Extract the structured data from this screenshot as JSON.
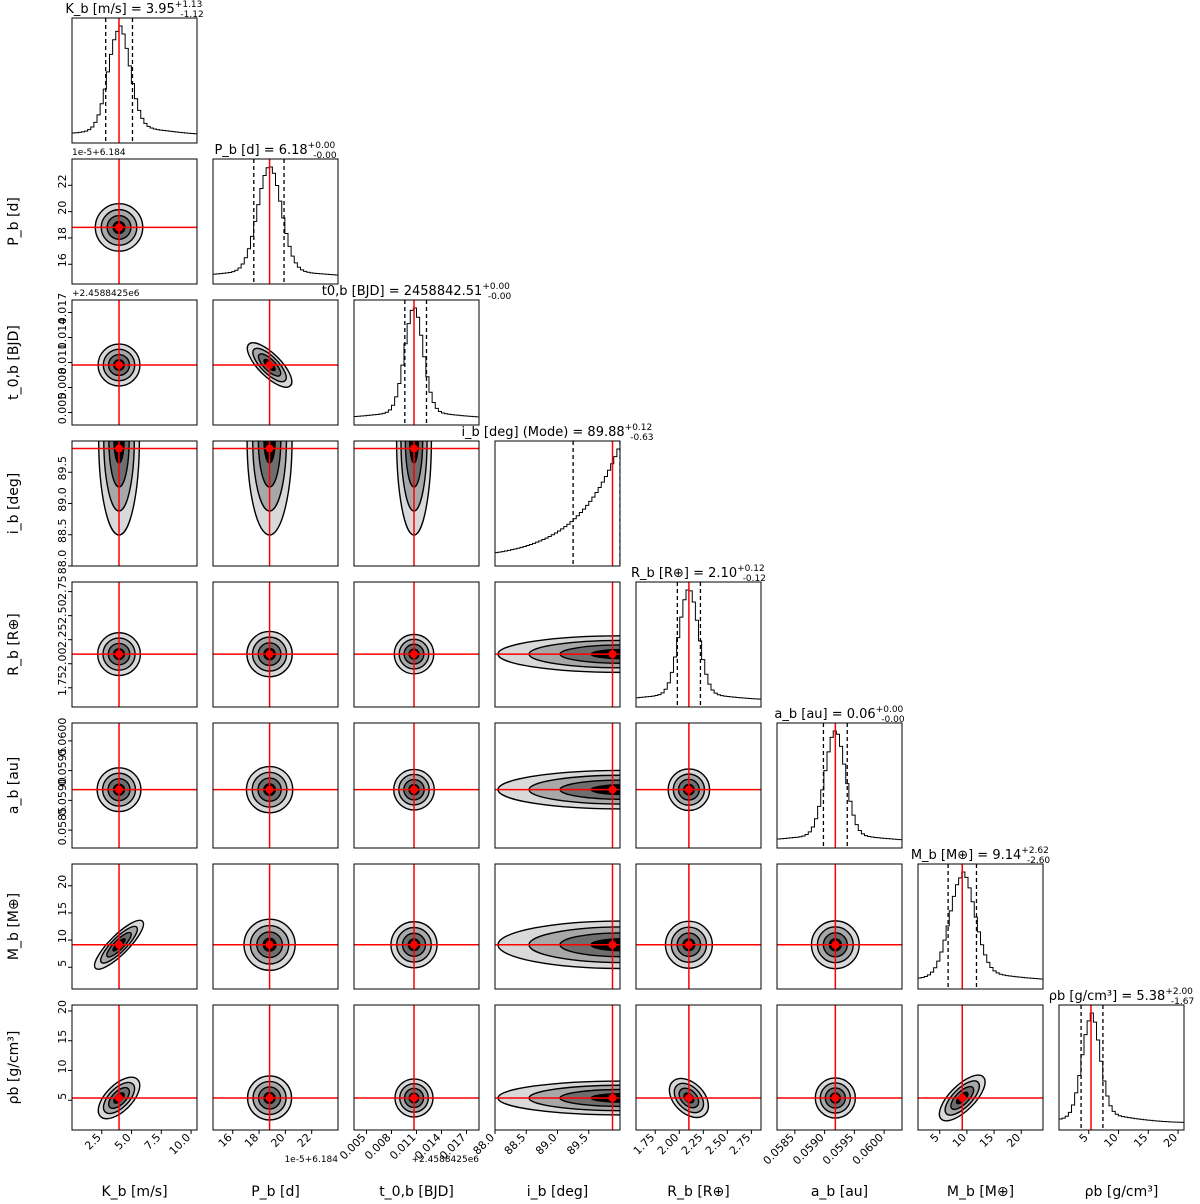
{
  "chart_data": {
    "type": "corner",
    "description_source": "posterior corner plot",
    "params": [
      {
        "key": "K",
        "title": "K_b [m/s] = 3.95 +1.13/-1.12",
        "title_main": "K_b [m/s] = 3.95",
        "plus": "+1.13",
        "minus": "-1.12",
        "axis_label": "K_b [m/s]",
        "range": [
          0,
          10.5
        ],
        "ticks": [
          2.5,
          5.0,
          7.5,
          10.0
        ],
        "tick_labels": [
          "2.5",
          "5.0",
          "7.5",
          "10.0"
        ],
        "median": 3.95,
        "lo": 2.83,
        "hi": 5.08,
        "sigma": 0.9,
        "offset_label": "",
        "hist_tail": "right"
      },
      {
        "key": "P",
        "title": "P_b [d] = 6.18 +0.00/-0.00",
        "title_main": "P_b [d] = 6.18",
        "plus": "+0.00",
        "minus": "-0.00",
        "axis_label": "P_b [d]",
        "range": [
          14.5,
          24
        ],
        "ticks": [
          16,
          18,
          20,
          22
        ],
        "tick_labels": [
          "16",
          "18",
          "20",
          "22"
        ],
        "median": 18.8,
        "lo": 17.6,
        "hi": 19.9,
        "sigma": 0.9,
        "offset_label": "1e-5+6.184",
        "hist_tail": "none"
      },
      {
        "key": "t0",
        "title": "t_0,b [BJD] = 2458842.51 +0.00/-0.00",
        "title_main": "t0,b [BJD] = 2458842.51",
        "plus": "+0.00",
        "minus": "-0.00",
        "axis_label": "t_0,b [BJD]",
        "range": [
          0.0035,
          0.0185
        ],
        "ticks": [
          0.005,
          0.008,
          0.011,
          0.014,
          0.017
        ],
        "tick_labels": [
          "0.005",
          "0.008",
          "0.011",
          "0.014",
          "0.017"
        ],
        "median": 0.0107,
        "lo": 0.0096,
        "hi": 0.0122,
        "sigma": 0.0011,
        "offset_label": "+2.4588425e6",
        "hist_tail": "none"
      },
      {
        "key": "i",
        "title": "i_b [deg] (Mode) = 89.88 +0.12/-0.63",
        "title_main": "i_b [deg] (Mode) = 89.88",
        "plus": "+0.12",
        "minus": "-0.63",
        "axis_label": "i_b [deg]",
        "range": [
          88.0,
          90.0
        ],
        "ticks": [
          88.0,
          88.5,
          89.0,
          89.5
        ],
        "tick_labels": [
          "88.0",
          "88.5",
          "89.0",
          "89.5"
        ],
        "median": 89.88,
        "lo": 89.25,
        "hi": 90.0,
        "sigma": 0.63,
        "offset_label": "",
        "hist_tail": "rising"
      },
      {
        "key": "R",
        "title": "R_b [R_earth] = 2.10 +0.12/-0.12",
        "title_main": "R_b [R⊕] = 2.10",
        "plus": "+0.12",
        "minus": "-0.12",
        "axis_label": "R_b [R⊕]",
        "range": [
          1.55,
          2.85
        ],
        "ticks": [
          1.75,
          2.0,
          2.25,
          2.5,
          2.75
        ],
        "tick_labels": [
          "1.75",
          "2.00",
          "2.25",
          "2.50",
          "2.75"
        ],
        "median": 2.1,
        "lo": 1.98,
        "hi": 2.22,
        "sigma": 0.1,
        "offset_label": "",
        "hist_tail": "none"
      },
      {
        "key": "a",
        "title": "a_b [au] = 0.06 +0.00/-0.00",
        "title_main": "a_b [au] = 0.06",
        "plus": "+0.00",
        "minus": "-0.00",
        "axis_label": "a_b [au]",
        "range": [
          0.0582,
          0.0603
        ],
        "ticks": [
          0.0585,
          0.059,
          0.0595,
          0.06
        ],
        "tick_labels": [
          "0.0585",
          "0.0590",
          "0.0595",
          "0.0600"
        ],
        "median": 0.05918,
        "lo": 0.05898,
        "hi": 0.05938,
        "sigma": 0.00017,
        "offset_label": "",
        "hist_tail": "none"
      },
      {
        "key": "M",
        "title": "M_b [M_earth] = 9.14 +2.62/-2.60",
        "title_main": "M_b [M⊕] = 9.14",
        "plus": "+2.62",
        "minus": "-2.60",
        "axis_label": "M_b [M⊕]",
        "range": [
          1,
          24
        ],
        "ticks": [
          5,
          10,
          15,
          20
        ],
        "tick_labels": [
          "5",
          "10",
          "15",
          "20"
        ],
        "median": 9.14,
        "lo": 6.54,
        "hi": 11.76,
        "sigma": 2.3,
        "offset_label": "",
        "hist_tail": "right"
      },
      {
        "key": "rho",
        "title": "rho_b [g/cm3] = 5.38 +2.00/-1.67",
        "title_main": "ρb [g/cm³] = 5.38",
        "plus": "+2.00",
        "minus": "-1.67",
        "axis_label": "ρb [g/cm³]",
        "range": [
          0,
          21
        ],
        "ticks": [
          5,
          10,
          15,
          20
        ],
        "tick_labels": [
          "5",
          "10",
          "15",
          "20"
        ],
        "median": 5.38,
        "lo": 3.71,
        "hi": 7.38,
        "sigma": 1.5,
        "offset_label": "",
        "hist_tail": "right"
      }
    ],
    "correlations": [
      {
        "row": 6,
        "col": 0,
        "rho": 0.85
      },
      {
        "row": 7,
        "col": 0,
        "rho": 0.6
      },
      {
        "row": 7,
        "col": 6,
        "rho": 0.7
      },
      {
        "row": 2,
        "col": 1,
        "rho": -0.75
      },
      {
        "row": 7,
        "col": 4,
        "rho": -0.4
      }
    ],
    "contour_levels_sigma": [
      0.5,
      1.0,
      1.5,
      2.0
    ],
    "marker_color": "#ff0000",
    "line_color": "#ff0000",
    "contour_fills": [
      "#d9d9d9",
      "#a8a8a8",
      "#6e6e6e",
      "#000000"
    ]
  }
}
